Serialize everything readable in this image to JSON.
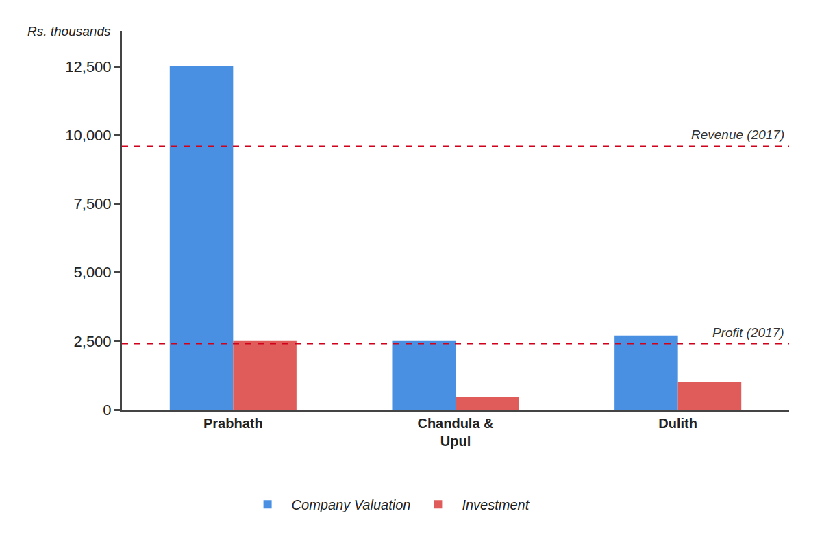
{
  "chart_data": {
    "type": "bar",
    "y_label": "Rs. thousands",
    "categories": [
      "Prabhath",
      "Chandula & Upul",
      "Dulith"
    ],
    "series": [
      {
        "name": "Company Valuation",
        "color": "#4a90e2",
        "values": [
          12500,
          2500,
          2700
        ]
      },
      {
        "name": "Investment",
        "color": "#e05c5a",
        "values": [
          2500,
          450,
          1000
        ]
      }
    ],
    "ylim": [
      0,
      13800
    ],
    "yticks": [
      0,
      {
        "value": 2500,
        "label": "2,500"
      },
      {
        "value": 5000,
        "label": "5,000"
      },
      {
        "value": 7500,
        "label": "7,500"
      },
      {
        "value": 10000,
        "label": "10,000"
      },
      {
        "value": 12500,
        "label": "12,500"
      }
    ],
    "reference_lines": [
      {
        "label": "Revenue (2017)",
        "value": 9600,
        "color": "#d0021b",
        "line_style": "dashed"
      },
      {
        "label": "Profit (2017)",
        "value": 2400,
        "color": "#d0021b",
        "line_style": "dashed"
      }
    ],
    "grid": false,
    "legend": "bottom",
    "data_labels": false
  }
}
